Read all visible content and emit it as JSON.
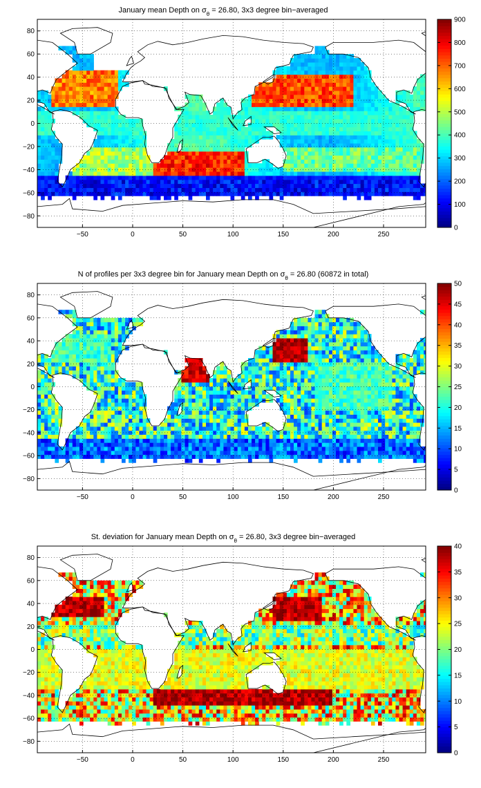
{
  "chart_data": [
    {
      "type": "heatmap",
      "title": {
        "prefix": "January mean Depth on σ",
        "sub": "θ",
        "suffix": " = 26.80, 3x3 degree bin−averaged"
      },
      "xlabel": "",
      "ylabel": "",
      "xlim": [
        -95,
        292
      ],
      "ylim": [
        -90,
        90
      ],
      "xticks": [
        -50,
        0,
        50,
        100,
        150,
        200,
        250
      ],
      "yticks": [
        -80,
        -60,
        -40,
        -20,
        0,
        20,
        40,
        60,
        80
      ],
      "colorbar": {
        "min": 0,
        "max": 900,
        "ticks": [
          0,
          100,
          200,
          300,
          400,
          500,
          600,
          700,
          800,
          900
        ],
        "colormap": "jet"
      },
      "grid": true,
      "field": "depth",
      "regions": [
        {
          "lon": [
            -80,
            -15
          ],
          "lat": [
            15,
            45
          ],
          "value": 680
        },
        {
          "lon": [
            120,
            220
          ],
          "lat": [
            15,
            42
          ],
          "value": 720
        },
        {
          "lon": [
            20,
            110
          ],
          "lat": [
            -45,
            -25
          ],
          "value": 760
        },
        {
          "lon": [
            -60,
            20
          ],
          "lat": [
            -45,
            -20
          ],
          "value": 480
        },
        {
          "lon": [
            150,
            290
          ],
          "lat": [
            -40,
            -20
          ],
          "value": 430
        },
        {
          "lon": [
            -95,
            292
          ],
          "lat": [
            -62,
            -48
          ],
          "value": 120
        }
      ]
    },
    {
      "type": "heatmap",
      "title": {
        "prefix": "N of profiles per 3x3 degree bin for January mean Depth on σ",
        "sub": "θ",
        "suffix": " = 26.80 (60872 in total)"
      },
      "xlabel": "",
      "ylabel": "",
      "xlim": [
        -95,
        292
      ],
      "ylim": [
        -90,
        90
      ],
      "xticks": [
        -50,
        0,
        50,
        100,
        150,
        200,
        250
      ],
      "yticks": [
        -80,
        -60,
        -40,
        -20,
        0,
        20,
        40,
        60,
        80
      ],
      "colorbar": {
        "min": 0,
        "max": 50,
        "ticks": [
          0,
          5,
          10,
          15,
          20,
          25,
          30,
          35,
          40,
          45,
          50
        ],
        "colormap": "jet"
      },
      "grid": true,
      "field": "count",
      "total_profiles": 60872,
      "regions": [
        {
          "lon": [
            140,
            175
          ],
          "lat": [
            20,
            42
          ],
          "value": 48
        },
        {
          "lon": [
            50,
            75
          ],
          "lat": [
            5,
            25
          ],
          "value": 45
        },
        {
          "lon": [
            -80,
            -20
          ],
          "lat": [
            20,
            45
          ],
          "value": 22
        },
        {
          "lon": [
            180,
            260
          ],
          "lat": [
            -20,
            20
          ],
          "value": 22
        }
      ]
    },
    {
      "type": "heatmap",
      "title": {
        "prefix": "St. deviation for January mean Depth on σ",
        "sub": "θ",
        "suffix": " = 26.80, 3x3 degree bin−averaged"
      },
      "xlabel": "",
      "ylabel": "",
      "xlim": [
        -95,
        292
      ],
      "ylim": [
        -90,
        90
      ],
      "xticks": [
        -50,
        0,
        50,
        100,
        150,
        200,
        250
      ],
      "yticks": [
        -80,
        -60,
        -40,
        -20,
        0,
        20,
        40,
        60,
        80
      ],
      "colorbar": {
        "min": 0,
        "max": 40,
        "ticks": [
          0,
          5,
          10,
          15,
          20,
          25,
          30,
          35,
          40
        ],
        "colormap": "jet"
      },
      "grid": true,
      "field": "std",
      "regions": [
        {
          "lon": [
            -80,
            -30
          ],
          "lat": [
            30,
            45
          ],
          "value": 38
        },
        {
          "lon": [
            140,
            190
          ],
          "lat": [
            25,
            45
          ],
          "value": 38
        },
        {
          "lon": [
            20,
            200
          ],
          "lat": [
            -50,
            -35
          ],
          "value": 38
        },
        {
          "lon": [
            -95,
            292
          ],
          "lat": [
            -35,
            0
          ],
          "value": 24
        }
      ]
    }
  ]
}
